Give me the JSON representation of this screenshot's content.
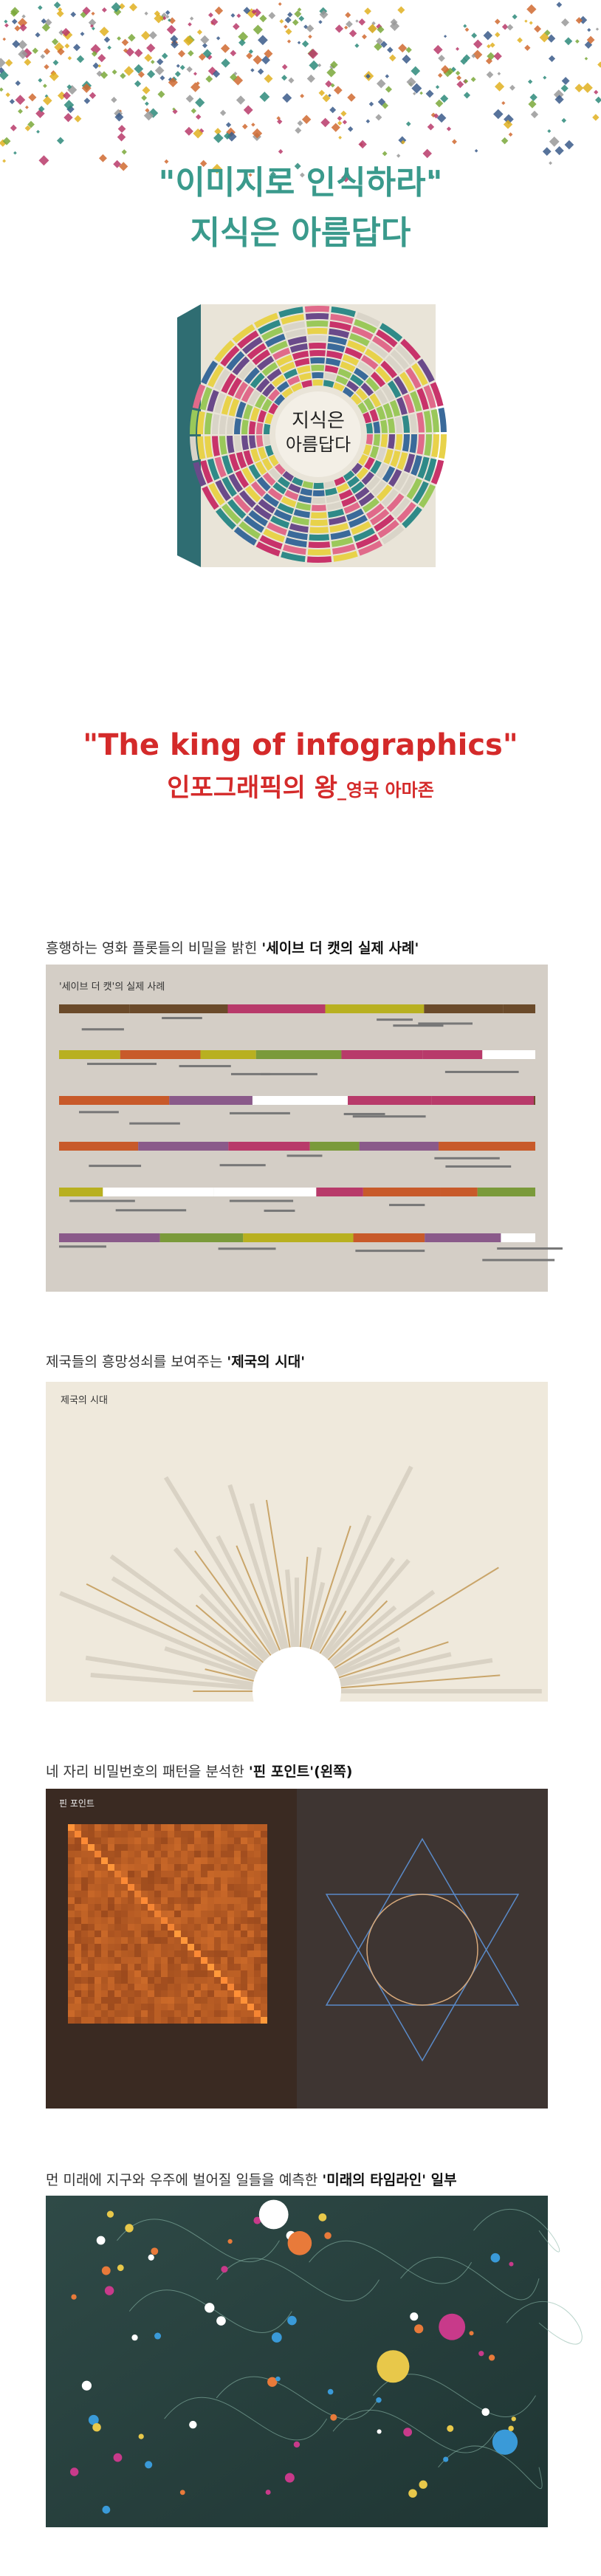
{
  "header": {
    "quote": "\"이미지로 인식하라\"",
    "title": "지식은 아름답다"
  },
  "book": {
    "cover_title": [
      "지식은",
      "아름답다"
    ]
  },
  "praise": {
    "quote": "\"The king of infographics\"",
    "translation": "인포그래픽의 왕",
    "source": "_영국 아마존"
  },
  "sections": [
    {
      "caption": "흥행하는 영화 플롯들의 비밀을 밝힌 ",
      "highlight": "'세이브 더 캣의 실제 사례'",
      "image_title": "'세이브 더 캣'의 실제 사례"
    },
    {
      "caption": "제국들의 흥망성쇠를 보여주는 ",
      "highlight": "'제국의 시대'",
      "image_title": "제국의 시대"
    },
    {
      "caption": "네 자리 비밀번호의 패턴을 분석한 ",
      "highlight": "'핀 포인트'(왼쪽)",
      "image_title": "핀 포인트"
    },
    {
      "caption": "먼 미래에 지구와 우주에 벌어질 일들을 예측한 ",
      "highlight": "'미래의 타임라인' 일부"
    }
  ]
}
